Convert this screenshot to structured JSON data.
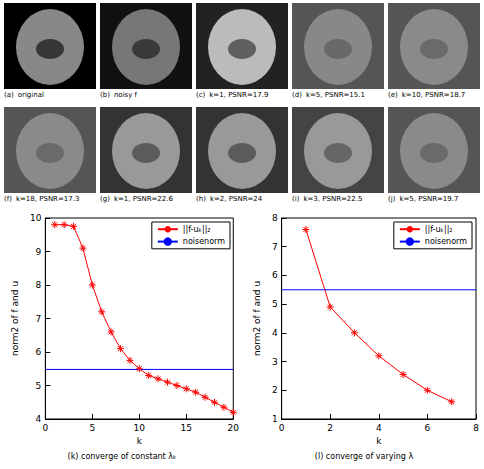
{
  "image_panels": [
    {
      "letter": "(a)",
      "caption": "original"
    },
    {
      "letter": "(b)",
      "caption": "noisy f"
    },
    {
      "letter": "(c)",
      "caption": "k=1, PSNR=17.9"
    },
    {
      "letter": "(d)",
      "caption": "k=5, PSNR=15.1"
    },
    {
      "letter": "(e)",
      "caption": "k=10, PSNR=18.7"
    },
    {
      "letter": "(f)",
      "caption": "k=18, PSNR=17.3"
    },
    {
      "letter": "(g)",
      "caption": "k=1, PSNR=22.6"
    },
    {
      "letter": "(h)",
      "caption": "k=2, PSNR=24"
    },
    {
      "letter": "(i)",
      "caption": "k=3, PSNR=22.5"
    },
    {
      "letter": "(j)",
      "caption": "k=5, PSNR=19.7"
    }
  ],
  "chart_data": [
    {
      "type": "line",
      "title": "(k) converge of constant λₖ",
      "x_label": "k",
      "y_label": "norm2 of f and u",
      "xlim": [
        0,
        20
      ],
      "xticks": [
        0,
        5,
        10,
        15,
        20
      ],
      "ylim": [
        4,
        10
      ],
      "yticks": [
        4,
        5,
        6,
        7,
        8,
        9,
        10
      ],
      "grid": false,
      "legend": "top-right",
      "series": [
        {
          "name": "||f-uₖ||₂",
          "color": "#ff0000",
          "marker": "star",
          "line_style": "solid",
          "x": [
            1,
            2,
            3,
            4,
            5,
            6,
            7,
            8,
            9,
            10,
            11,
            12,
            13,
            14,
            15,
            16,
            17,
            18,
            19,
            20
          ],
          "values": [
            9.8,
            9.8,
            9.75,
            9.1,
            8.0,
            7.2,
            6.6,
            6.1,
            5.75,
            5.5,
            5.3,
            5.2,
            5.1,
            5.0,
            4.9,
            4.8,
            4.65,
            4.5,
            4.35,
            4.2
          ]
        },
        {
          "name": "noisenorm",
          "color": "#0000ff",
          "marker": "none",
          "line_style": "solid",
          "x": [
            0,
            20
          ],
          "values": [
            5.48,
            5.48
          ]
        }
      ]
    },
    {
      "type": "line",
      "title": "(l) converge of varying λ",
      "x_label": "k",
      "y_label": "norm2 of f and u",
      "xlim": [
        0,
        8
      ],
      "xticks": [
        0,
        2,
        4,
        6,
        8
      ],
      "ylim": [
        1,
        8
      ],
      "yticks": [
        1,
        2,
        3,
        4,
        5,
        6,
        7,
        8
      ],
      "grid": false,
      "legend": "top-right",
      "series": [
        {
          "name": "||f-uₖ||₂",
          "color": "#ff0000",
          "marker": "star",
          "line_style": "solid",
          "x": [
            1,
            2,
            3,
            4,
            5,
            6,
            7
          ],
          "values": [
            7.6,
            4.9,
            4.0,
            3.2,
            2.55,
            2.0,
            1.6
          ]
        },
        {
          "name": "noisenorm",
          "color": "#0000ff",
          "marker": "none",
          "line_style": "solid",
          "x": [
            0,
            8
          ],
          "values": [
            5.5,
            5.5
          ]
        }
      ]
    }
  ]
}
